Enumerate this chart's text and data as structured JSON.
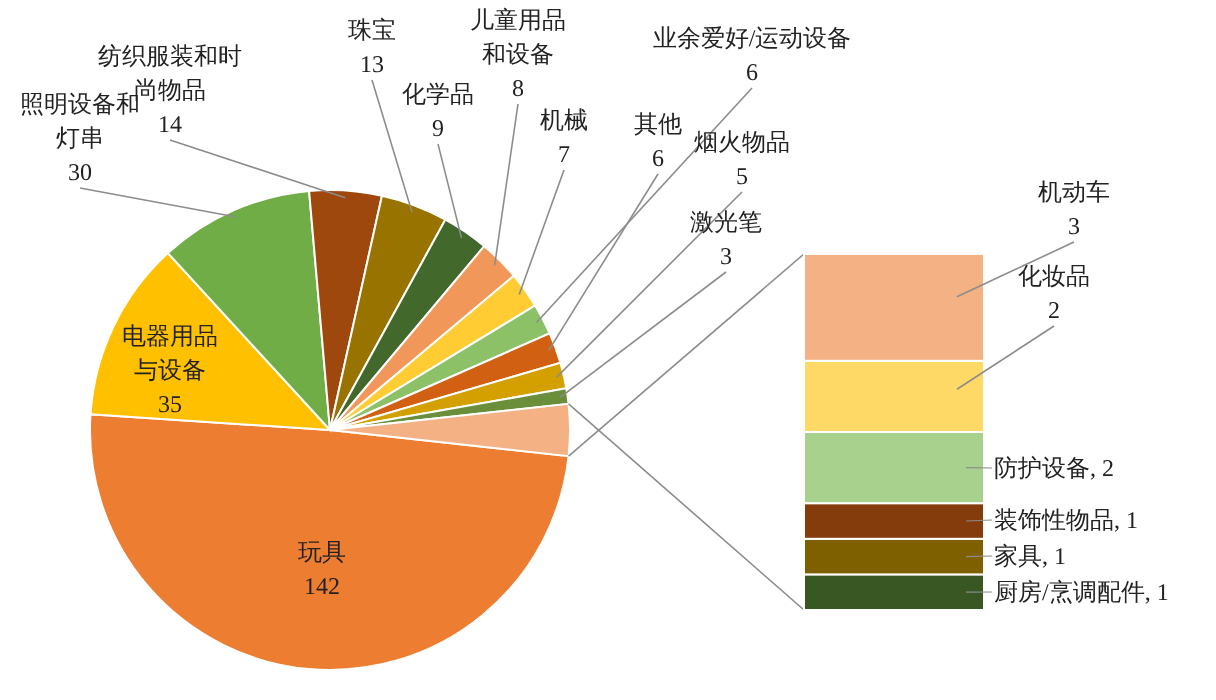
{
  "chart_data": [
    {
      "type": "pie",
      "categories": [
        "玩具",
        "电器用品与设备",
        "照明设备和灯串",
        "纺织服装和时尚物品",
        "珠宝",
        "化学品",
        "儿童用品和设备",
        "机械",
        "业余爱好/运动设备",
        "其他",
        "烟火物品",
        "激光笔",
        null
      ],
      "values": [
        142,
        35,
        30,
        14,
        13,
        9,
        8,
        7,
        6,
        6,
        5,
        3,
        10
      ],
      "colors": [
        "#ed7d31",
        "#ffc000",
        "#70ad47",
        "#9e480e",
        "#997300",
        "#43682b",
        "#f1975a",
        "#ffcd33",
        "#8cc168",
        "#d26012",
        "#d4a000",
        "#6b8e3a",
        "#f4b183"
      ],
      "value_labels": [
        "142",
        "35",
        "30",
        "14",
        "13",
        "9",
        "8",
        "7",
        "6",
        "6",
        "5",
        "3",
        null
      ]
    },
    {
      "type": "bar",
      "stacked": true,
      "categories": [
        null
      ],
      "series": [
        {
          "color": "#385723",
          "values": [
            1
          ],
          "value_labels": [
            "厨房/烹调配件, 1"
          ]
        },
        {
          "color": "#7f6000",
          "values": [
            1
          ],
          "value_labels": [
            "家具, 1"
          ]
        },
        {
          "color": "#843c0c",
          "values": [
            1
          ],
          "value_labels": [
            "装饰性物品, 1"
          ]
        },
        {
          "color": "#a9d18e",
          "values": [
            2
          ],
          "value_labels": [
            "防护设备, 2"
          ]
        },
        {
          "name": "化妆品",
          "color": "#ffd966",
          "values": [
            2
          ],
          "value_labels": [
            "2"
          ]
        },
        {
          "name": "机动车",
          "color": "#f4b183",
          "values": [
            3
          ],
          "value_labels": [
            "3"
          ]
        }
      ]
    }
  ]
}
